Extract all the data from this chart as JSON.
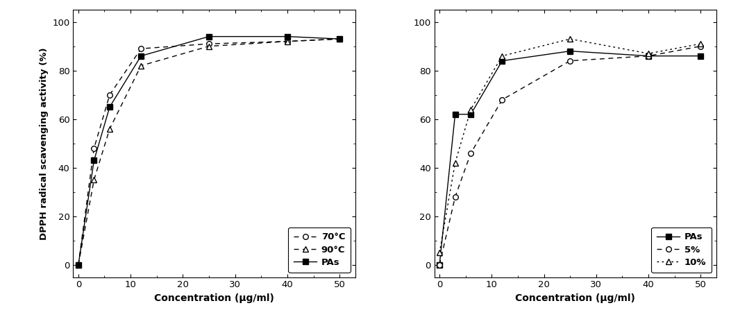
{
  "left": {
    "x": [
      0,
      3,
      6,
      12,
      25,
      40,
      50
    ],
    "series": {
      "70C": {
        "y": [
          0,
          48,
          70,
          89,
          91,
          92,
          93
        ],
        "label": "70°C",
        "linestyle": "dashed",
        "marker": "o",
        "markerfacecolor": "white",
        "color": "black"
      },
      "90C": {
        "y": [
          0,
          35,
          56,
          82,
          90,
          92,
          93
        ],
        "label": "90°C",
        "linestyle": "dashed",
        "marker": "^",
        "markerfacecolor": "white",
        "color": "black"
      },
      "PAs": {
        "y": [
          0,
          43,
          65,
          86,
          94,
          94,
          93
        ],
        "label": "PAs",
        "linestyle": "solid",
        "marker": "s",
        "markerfacecolor": "black",
        "color": "black"
      }
    },
    "xlabel": "Concentration (μg/ml)",
    "ylabel": "DPPH radical scavenging activity (%)",
    "xlim": [
      -1,
      53
    ],
    "ylim": [
      -5,
      105
    ],
    "xticks": [
      0,
      10,
      20,
      30,
      40,
      50
    ],
    "yticks": [
      0,
      20,
      40,
      60,
      80,
      100
    ]
  },
  "right": {
    "x": [
      0,
      3,
      6,
      12,
      25,
      40,
      50
    ],
    "series": {
      "PAs": {
        "y": [
          0,
          62,
          62,
          84,
          88,
          86,
          86
        ],
        "label": "PAs",
        "linestyle": "solid",
        "marker": "s",
        "markerfacecolor": "black",
        "color": "black"
      },
      "5pct": {
        "y": [
          0,
          28,
          46,
          68,
          84,
          86,
          90
        ],
        "label": "5%",
        "linestyle": "dashed",
        "marker": "o",
        "markerfacecolor": "white",
        "color": "black"
      },
      "10pct": {
        "y": [
          5,
          42,
          64,
          86,
          93,
          87,
          91
        ],
        "label": "10%",
        "linestyle": "dotted",
        "marker": "^",
        "markerfacecolor": "white",
        "color": "black"
      }
    },
    "xlabel": "Concentration (μg/ml)",
    "ylabel": "",
    "xlim": [
      -1,
      53
    ],
    "ylim": [
      -5,
      105
    ],
    "xticks": [
      0,
      10,
      20,
      30,
      40,
      50
    ],
    "yticks": [
      0,
      20,
      40,
      60,
      80,
      100
    ]
  },
  "background_color": "#ffffff",
  "plot_bg": "#ffffff",
  "fig_width": 10.53,
  "fig_height": 4.7,
  "dpi": 100
}
